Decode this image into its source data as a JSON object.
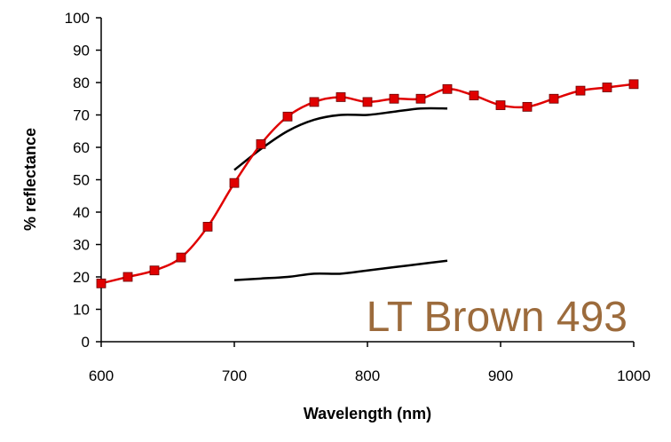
{
  "chart_data": {
    "type": "line",
    "title": "",
    "xlabel": "Wavelength (nm)",
    "ylabel": "% reflectance",
    "xlim": [
      600,
      1000
    ],
    "ylim": [
      0,
      100
    ],
    "x_ticks": [
      "600",
      "700",
      "800",
      "900",
      "1000"
    ],
    "y_ticks": [
      "0",
      "10",
      "20",
      "30",
      "40",
      "50",
      "60",
      "70",
      "80",
      "90",
      "100"
    ],
    "grid": false,
    "legend": "none",
    "annotation": "LT Brown 493",
    "annotation_color": "#9C6B3C",
    "series": [
      {
        "color": "#E00000",
        "marker": "square",
        "marker_fill": "#E00000",
        "x": [
          600,
          620,
          640,
          660,
          680,
          700,
          720,
          740,
          760,
          780,
          800,
          820,
          840,
          860,
          880,
          900,
          920,
          940,
          960,
          980,
          1000
        ],
        "y": [
          18,
          20,
          22,
          26,
          35.5,
          49,
          61,
          69.5,
          74,
          75.5,
          74,
          75,
          75,
          78,
          76,
          73,
          72.5,
          75,
          77.5,
          78.5,
          79.5
        ]
      },
      {
        "color": "#000000",
        "marker": "none",
        "x": [
          700,
          720,
          740,
          760,
          780,
          800,
          820,
          840,
          860
        ],
        "y": [
          53,
          59.5,
          65,
          68.5,
          70,
          70,
          71,
          72,
          72
        ]
      },
      {
        "color": "#000000",
        "marker": "none",
        "x": [
          700,
          720,
          740,
          760,
          780,
          800,
          820,
          840,
          860
        ],
        "y": [
          19,
          19.5,
          20,
          21,
          21,
          22,
          23,
          24,
          25
        ]
      }
    ]
  }
}
